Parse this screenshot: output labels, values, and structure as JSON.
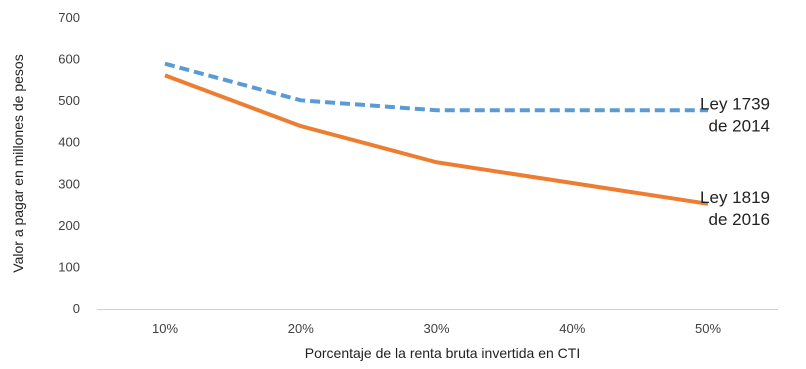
{
  "chart_data": {
    "type": "line",
    "title": "",
    "xlabel": "Porcentaje de la renta bruta invertida en CTI",
    "ylabel": "Valor a pagar en millones de pesos",
    "categories": [
      "10%",
      "20%",
      "30%",
      "40%",
      "50%"
    ],
    "ylim": [
      0,
      700
    ],
    "yticks": [
      0,
      100,
      200,
      300,
      400,
      500,
      600,
      700
    ],
    "grid": false,
    "legend": "inline-right",
    "series": [
      {
        "name_lines": [
          "Ley 1739",
          "de 2014"
        ],
        "values": [
          590,
          502,
          478,
          478,
          478
        ],
        "color": "#5B9BD5",
        "style": "dashed"
      },
      {
        "name_lines": [
          "Ley 1819",
          "de 2016"
        ],
        "values": [
          562,
          440,
          353,
          303,
          253
        ],
        "color": "#ED7D31",
        "style": "solid"
      }
    ]
  }
}
